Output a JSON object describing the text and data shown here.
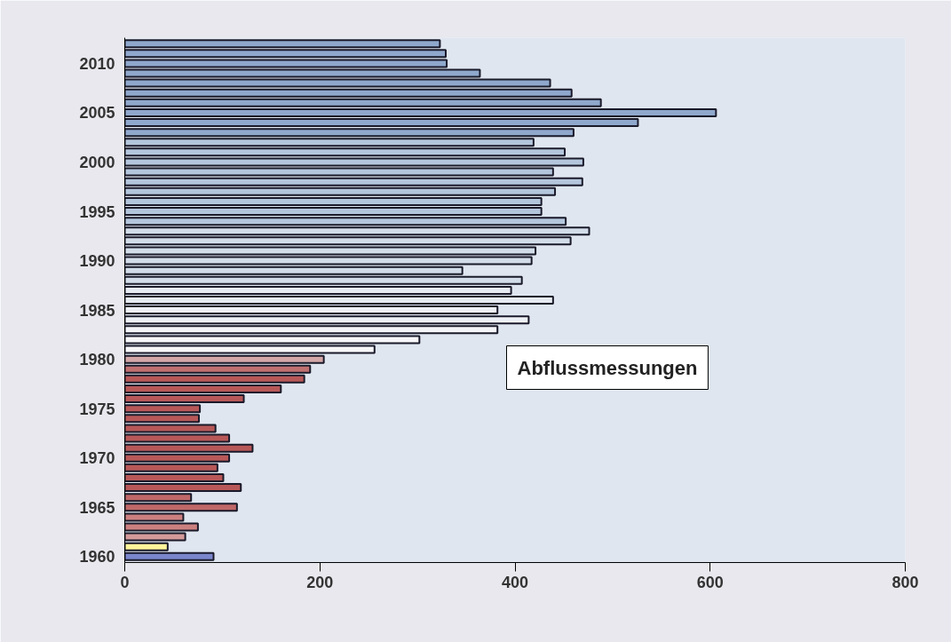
{
  "chart_data": {
    "type": "bar",
    "orientation": "horizontal",
    "annotations": [
      "Abflussmessungen"
    ],
    "categories": [
      null,
      null,
      "2010",
      null,
      null,
      null,
      null,
      "2005",
      null,
      null,
      null,
      null,
      "2000",
      null,
      null,
      null,
      null,
      "1995",
      null,
      null,
      null,
      null,
      "1990",
      null,
      null,
      null,
      null,
      "1985",
      null,
      null,
      null,
      null,
      "1980",
      null,
      null,
      null,
      null,
      "1975",
      null,
      null,
      null,
      null,
      "1970",
      null,
      null,
      null,
      null,
      "1965",
      null,
      null,
      null,
      null,
      "1960"
    ],
    "values": [
      323,
      329,
      330,
      364,
      436,
      458,
      488,
      606,
      526,
      460,
      419,
      451,
      470,
      439,
      469,
      441,
      427,
      427,
      452,
      476,
      457,
      421,
      417,
      346,
      407,
      396,
      439,
      382,
      414,
      382,
      302,
      256,
      204,
      190,
      184,
      160,
      122,
      77,
      76,
      93,
      107,
      131,
      107,
      95,
      101,
      119,
      68,
      115,
      60,
      75,
      62,
      44,
      91
    ],
    "colors": [
      "#8fa8cc",
      "#8fa8cc",
      "#8fa8cc",
      "#8fa8cc",
      "#8fa8cc",
      "#8fa8cc",
      "#8fa8cc",
      "#8fa8cc",
      "#8fa8cc",
      "#8fa8cc",
      "#b4c6dc",
      "#b4c6dc",
      "#b4c6dc",
      "#b4c6dc",
      "#b4c6dc",
      "#b4c6dc",
      "#b4c6dc",
      "#b4c6dc",
      "#b4c6dc",
      "#d2dde9",
      "#d2dde9",
      "#d2dde9",
      "#d2dde9",
      "#d2dde9",
      "#d2dde9",
      "#e6ebf2",
      "#e6ebf2",
      "#eef1f5",
      "#eef1f5",
      "#f4f5f8",
      "#f7f7f9",
      "#f7f7f9",
      "#d4a8a8",
      "#c07070",
      "#b85858",
      "#b85858",
      "#b85858",
      "#b85858",
      "#b85858",
      "#b85858",
      "#b85858",
      "#b85858",
      "#b85858",
      "#b85858",
      "#b85858",
      "#b85858",
      "#c06868",
      "#c06868",
      "#cc8080",
      "#cc8080",
      "#d49a9a",
      "#fff59a",
      "#7b86cc"
    ],
    "xlim": [
      0,
      800
    ],
    "xticks": [
      0,
      200,
      400,
      600,
      800
    ],
    "grid": false
  }
}
